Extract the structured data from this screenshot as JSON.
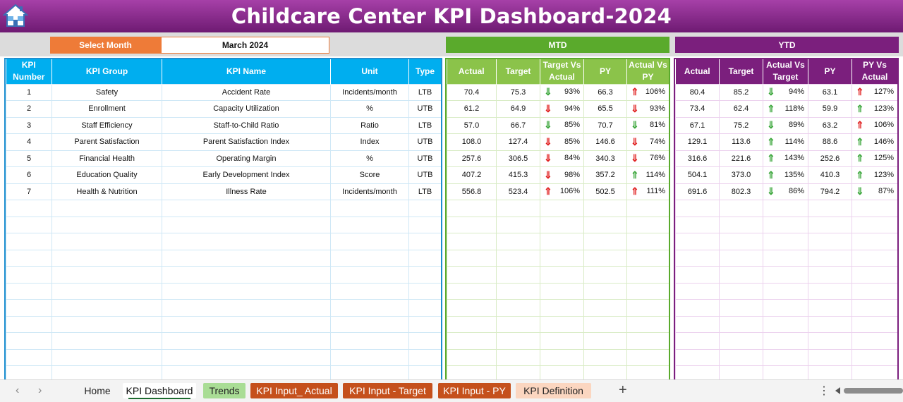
{
  "title": "Childcare Center KPI Dashboard-2024",
  "select_month": {
    "label": "Select Month",
    "value": "March 2024"
  },
  "sections": {
    "mtd": "MTD",
    "ytd": "YTD"
  },
  "kpi_headers": [
    "KPI\nNumber",
    "KPI Group",
    "KPI Name",
    "Unit",
    "Type"
  ],
  "mtd_headers": [
    "Actual",
    "Target",
    "Target Vs Actual",
    "PY",
    "Actual Vs PY"
  ],
  "ytd_headers": [
    "Actual",
    "Target",
    "Actual Vs Target",
    "PY",
    "PY Vs Actual"
  ],
  "rows": [
    {
      "num": "1",
      "group": "Safety",
      "name": "Accident Rate",
      "unit": "Incidents/month",
      "type": "LTB",
      "mtd": {
        "actual": "70.4",
        "target": "75.3",
        "tva": "93%",
        "tva_dir": "down",
        "tva_color": "green",
        "py": "66.3",
        "avp": "106%",
        "avp_dir": "up",
        "avp_color": "red"
      },
      "ytd": {
        "actual": "80.4",
        "target": "85.2",
        "avt": "94%",
        "avt_dir": "down",
        "avt_color": "green",
        "py": "63.1",
        "pva": "127%",
        "pva_dir": "up",
        "pva_color": "red"
      }
    },
    {
      "num": "2",
      "group": "Enrollment",
      "name": "Capacity Utilization",
      "unit": "%",
      "type": "UTB",
      "mtd": {
        "actual": "61.2",
        "target": "64.9",
        "tva": "94%",
        "tva_dir": "down",
        "tva_color": "red",
        "py": "65.5",
        "avp": "93%",
        "avp_dir": "down",
        "avp_color": "red"
      },
      "ytd": {
        "actual": "73.4",
        "target": "62.4",
        "avt": "118%",
        "avt_dir": "up",
        "avt_color": "green",
        "py": "59.9",
        "pva": "123%",
        "pva_dir": "up",
        "pva_color": "green"
      }
    },
    {
      "num": "3",
      "group": "Staff Efficiency",
      "name": "Staff-to-Child Ratio",
      "unit": "Ratio",
      "type": "LTB",
      "mtd": {
        "actual": "57.0",
        "target": "66.7",
        "tva": "85%",
        "tva_dir": "down",
        "tva_color": "green",
        "py": "70.7",
        "avp": "81%",
        "avp_dir": "down",
        "avp_color": "green"
      },
      "ytd": {
        "actual": "67.1",
        "target": "75.2",
        "avt": "89%",
        "avt_dir": "down",
        "avt_color": "green",
        "py": "63.2",
        "pva": "106%",
        "pva_dir": "up",
        "pva_color": "red"
      }
    },
    {
      "num": "4",
      "group": "Parent Satisfaction",
      "name": "Parent Satisfaction Index",
      "unit": "Index",
      "type": "UTB",
      "mtd": {
        "actual": "108.0",
        "target": "127.4",
        "tva": "85%",
        "tva_dir": "down",
        "tva_color": "red",
        "py": "146.6",
        "avp": "74%",
        "avp_dir": "down",
        "avp_color": "red"
      },
      "ytd": {
        "actual": "129.1",
        "target": "113.6",
        "avt": "114%",
        "avt_dir": "up",
        "avt_color": "green",
        "py": "88.6",
        "pva": "146%",
        "pva_dir": "up",
        "pva_color": "green"
      }
    },
    {
      "num": "5",
      "group": "Financial Health",
      "name": "Operating Margin",
      "unit": "%",
      "type": "UTB",
      "mtd": {
        "actual": "257.6",
        "target": "306.5",
        "tva": "84%",
        "tva_dir": "down",
        "tva_color": "red",
        "py": "340.3",
        "avp": "76%",
        "avp_dir": "down",
        "avp_color": "red"
      },
      "ytd": {
        "actual": "316.6",
        "target": "221.6",
        "avt": "143%",
        "avt_dir": "up",
        "avt_color": "green",
        "py": "252.6",
        "pva": "125%",
        "pva_dir": "up",
        "pva_color": "green"
      }
    },
    {
      "num": "6",
      "group": "Education Quality",
      "name": "Early Development Index",
      "unit": "Score",
      "type": "UTB",
      "mtd": {
        "actual": "407.2",
        "target": "415.3",
        "tva": "98%",
        "tva_dir": "down",
        "tva_color": "red",
        "py": "357.2",
        "avp": "114%",
        "avp_dir": "up",
        "avp_color": "green"
      },
      "ytd": {
        "actual": "504.1",
        "target": "373.0",
        "avt": "135%",
        "avt_dir": "up",
        "avt_color": "green",
        "py": "410.3",
        "pva": "123%",
        "pva_dir": "up",
        "pva_color": "green"
      }
    },
    {
      "num": "7",
      "group": "Health & Nutrition",
      "name": "Illness Rate",
      "unit": "Incidents/month",
      "type": "LTB",
      "mtd": {
        "actual": "556.8",
        "target": "523.4",
        "tva": "106%",
        "tva_dir": "up",
        "tva_color": "red",
        "py": "502.5",
        "avp": "111%",
        "avp_dir": "up",
        "avp_color": "red"
      },
      "ytd": {
        "actual": "691.6",
        "target": "802.3",
        "avt": "86%",
        "avt_dir": "down",
        "avt_color": "green",
        "py": "794.2",
        "pva": "87%",
        "pva_dir": "down",
        "pva_color": "green"
      }
    }
  ],
  "empty_rows": 11,
  "tabs": {
    "home": "Home",
    "dashboard": "KPI Dashboard",
    "trends": "Trends",
    "input_actual": "KPI Input_ Actual",
    "input_target": "KPI Input - Target",
    "input_py": "KPI Input - PY",
    "definition": "KPI Definition"
  },
  "icons": {
    "home": "home-icon",
    "add": "plus-icon",
    "more": "vertical-ellipsis-icon"
  },
  "colors": {
    "title": "#7b1f7d",
    "mtd": "#5aaa2c",
    "ytd": "#7b1f7d",
    "kpi": "#00aeef",
    "select": "#ee7b38"
  }
}
